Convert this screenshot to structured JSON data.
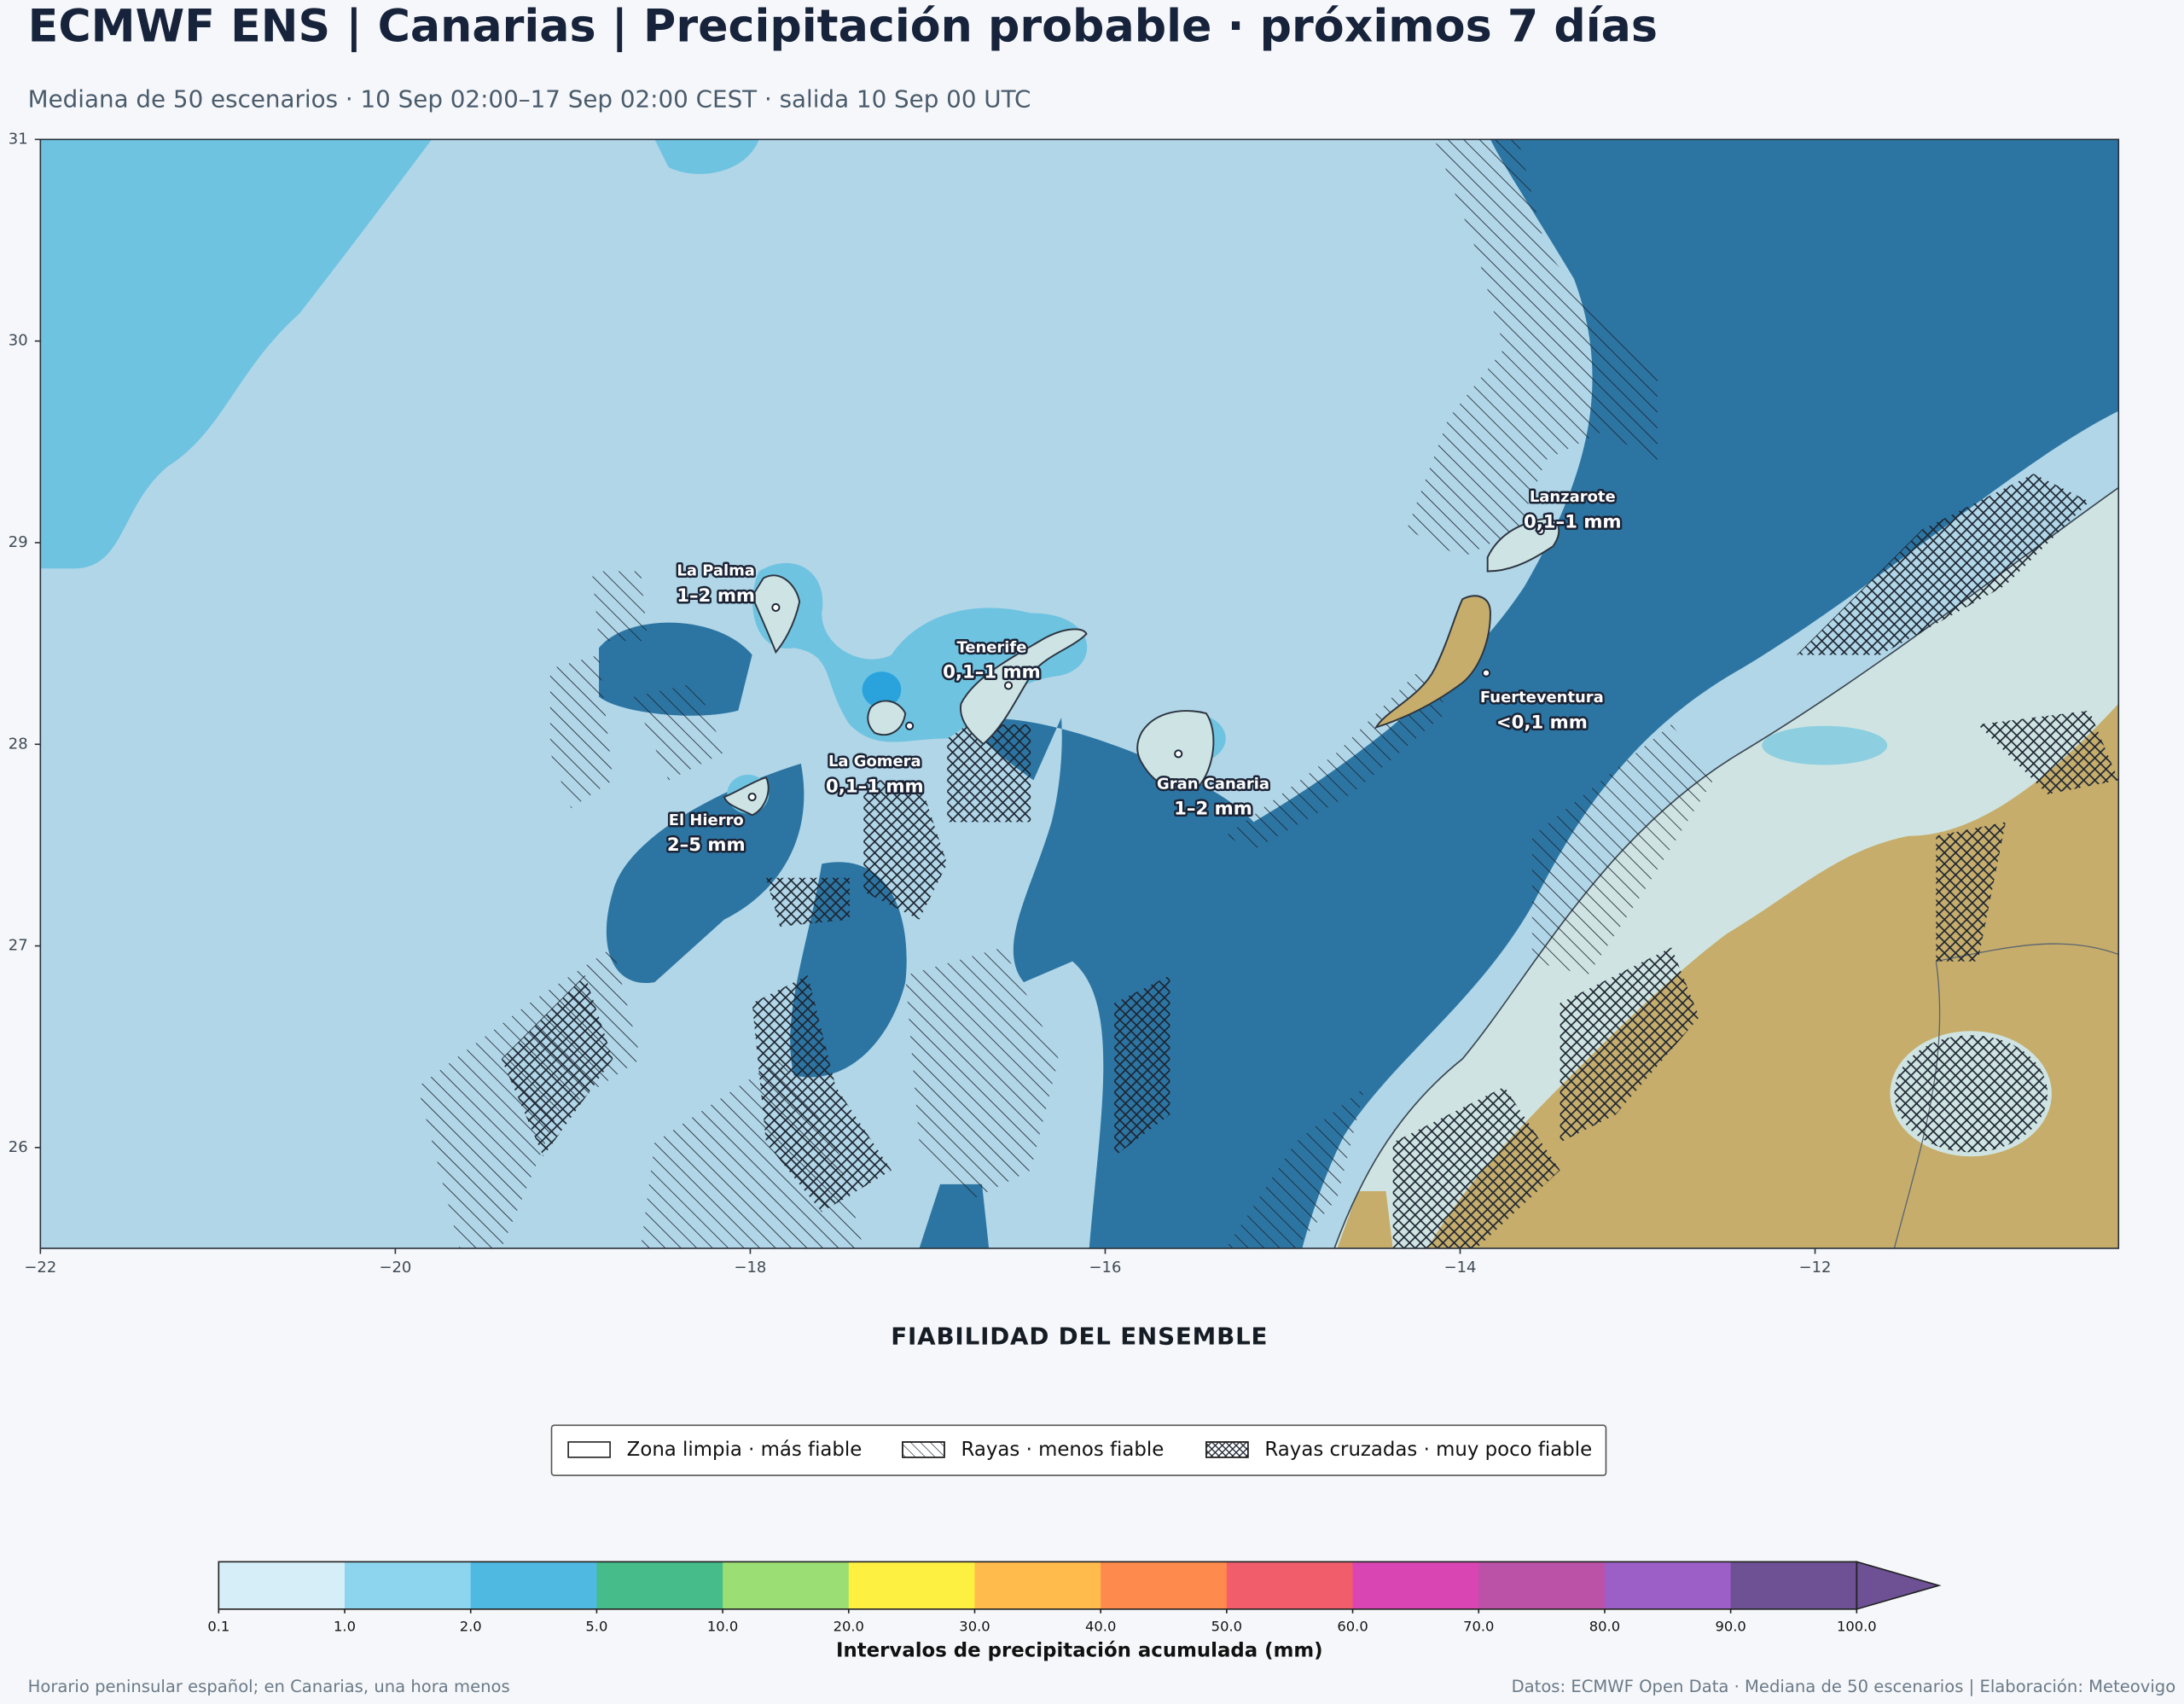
{
  "chart_data": {
    "type": "map",
    "title": "ECMWF ENS | Canarias | Precipitación probable · próximos 7 días",
    "subtitle": "Mediana de 50 escenarios · 10 Sep 02:00–17 Sep 02:00 CEST · salida 10 Sep 00 UTC",
    "xlim": [
      -22,
      -10.29
    ],
    "ylim": [
      25.5,
      31
    ],
    "xticks": [
      {
        "value": -22,
        "label": "−22"
      },
      {
        "value": -20,
        "label": "−20"
      },
      {
        "value": -18,
        "label": "−18"
      },
      {
        "value": -16,
        "label": "−16"
      },
      {
        "value": -14,
        "label": "−14"
      },
      {
        "value": -12,
        "label": "−12"
      }
    ],
    "yticks": [
      26,
      27,
      28,
      29,
      30,
      31
    ],
    "islands": [
      {
        "name": "La Palma",
        "label": "1–2 mm"
      },
      {
        "name": "Tenerife",
        "label": "0,1–1 mm"
      },
      {
        "name": "La Gomera",
        "label": "0,1–1 mm"
      },
      {
        "name": "El Hierro",
        "label": "2–5 mm"
      },
      {
        "name": "Gran Canaria",
        "label": "1–2 mm"
      },
      {
        "name": "Lanzarote",
        "label": "0,1–1 mm"
      },
      {
        "name": "Fuerteventura",
        "label": "<0,1 mm"
      }
    ],
    "legend_title": "FIABILIDAD DEL ENSEMBLE",
    "legend": [
      "Zona limpia · más fiable",
      "Rayas · menos fiable",
      "Rayas cruzadas · muy poco fiable"
    ],
    "colorbar": {
      "label": "Intervalos de precipitación acumulada (mm)",
      "ticks": [
        0.1,
        {
          "value": 1,
          "label": "1.0"
        },
        {
          "value": 2,
          "label": "2.0"
        },
        {
          "value": 5,
          "label": "5.0"
        },
        {
          "value": 10,
          "label": "10.0"
        },
        {
          "value": 20,
          "label": "20.0"
        },
        {
          "value": 30,
          "label": "30.0"
        },
        {
          "value": 40,
          "label": "40.0"
        },
        {
          "value": 50,
          "label": "50.0"
        },
        {
          "value": 60,
          "label": "60.0"
        },
        {
          "value": 70,
          "label": "70.0"
        },
        {
          "value": 80,
          "label": "80.0"
        },
        {
          "value": 90,
          "label": "90.0"
        },
        {
          "value": 100,
          "label": "100.0"
        }
      ],
      "colors": [
        "#d6eef7",
        "#8dd4ee",
        "#4fb9e2",
        "#45bc8a",
        "#9ade74",
        "#fef040",
        "#ffbc4d",
        "#ff8a4d",
        "#f25d6c",
        "#d946b4",
        "#bb52a8",
        "#9b5fc7",
        "#6d5194"
      ],
      "extend_color": "#6d5194"
    },
    "footer_left": "Horario peninsular español; en Canarias, una hora menos",
    "footer_right": "Datos: ECMWF Open Data · Mediana de 50 escenarios | Elaboración: Meteovigo"
  }
}
